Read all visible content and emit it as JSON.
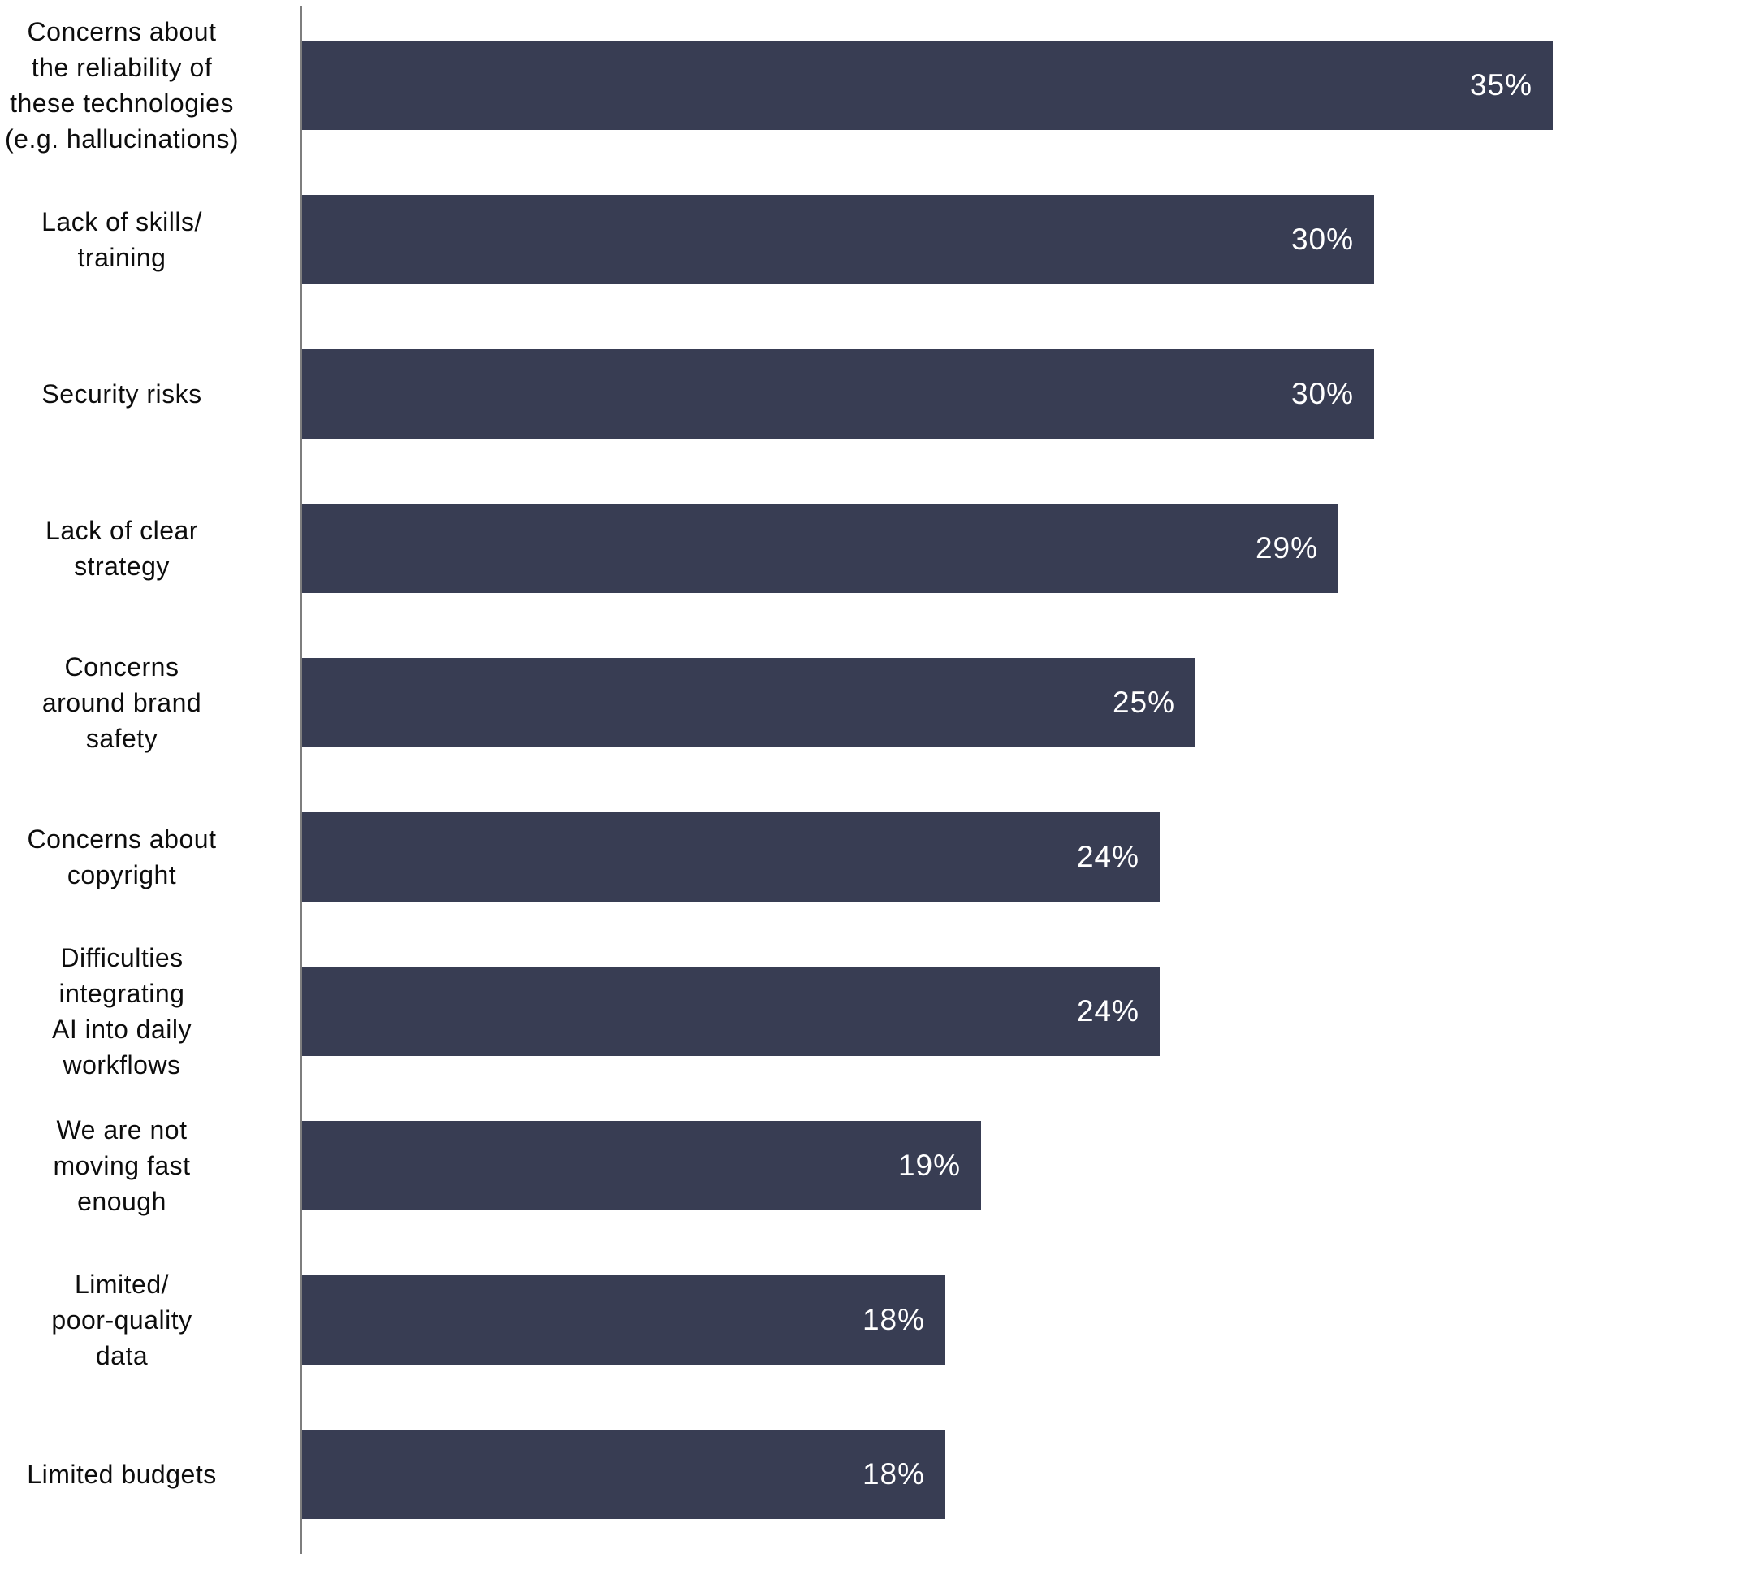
{
  "chart_data": {
    "type": "bar",
    "orientation": "horizontal",
    "title": "",
    "categories": [
      "Concerns about the reliability of these technologies (e.g. hallucinations)",
      "Lack of skills/ training",
      "Security risks",
      "Lack of clear strategy",
      "Concerns around brand safety",
      "Concerns about copyright",
      "Difficulties integrating AI into daily workflows",
      "We are not moving fast enough",
      "Limited/ poor-quality data",
      "Limited budgets"
    ],
    "category_lines": [
      [
        "Concerns about",
        "the reliability of",
        "these technologies",
        "(e.g. hallucinations)"
      ],
      [
        "Lack of skills/",
        "training"
      ],
      [
        "Security risks"
      ],
      [
        "Lack of clear",
        "strategy"
      ],
      [
        "Concerns",
        "around brand",
        "safety"
      ],
      [
        "Concerns about",
        "copyright"
      ],
      [
        "Difficulties",
        "integrating",
        "AI into daily",
        "workflows"
      ],
      [
        "We are not",
        "moving fast",
        "enough"
      ],
      [
        "Limited/",
        "poor-quality",
        "data"
      ],
      [
        "Limited budgets"
      ]
    ],
    "values": [
      35,
      30,
      30,
      29,
      25,
      24,
      24,
      19,
      18,
      18
    ],
    "value_labels": [
      "35%",
      "30%",
      "30%",
      "29%",
      "25%",
      "24%",
      "24%",
      "19%",
      "18%",
      "18%"
    ],
    "xlabel": "",
    "ylabel": "",
    "xlim": [
      0,
      40
    ],
    "grid": false,
    "legend": false,
    "value_label_position": "inside-end",
    "colors": {
      "bar": "#383D53",
      "value_label": "#FFFFFF",
      "category_label": "#0D0D0D",
      "axis_line": "#7E7E7E",
      "background": "#FFFFFF"
    }
  }
}
